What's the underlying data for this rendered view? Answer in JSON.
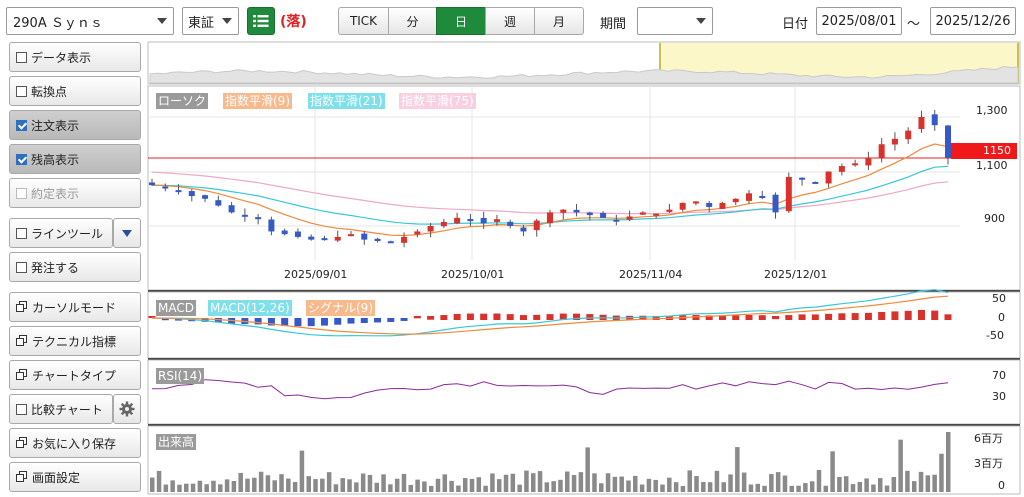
{
  "toolbar": {
    "symbol": "290A Ｓｙｎｓ",
    "exchange": "東証",
    "fall_mark": "(落)",
    "period_buttons": [
      "TICK",
      "分",
      "日",
      "週",
      "月"
    ],
    "active_period": "日",
    "period_label": "期間",
    "period_value": "",
    "date_label": "日付",
    "date_from": "2025/08/01",
    "date_sep": "～",
    "date_to": "2025/12/26"
  },
  "sidebar": {
    "data_display": "データ表示",
    "turning_point": "転換点",
    "order_display": "注文表示",
    "balance_display": "残高表示",
    "execution_display": "約定表示",
    "line_tool": "ラインツール",
    "place_order": "発注する",
    "cursor_mode": "カーソルモード",
    "technical_indicator": "テクニカル指標",
    "chart_type": "チャートタイプ",
    "compare_chart": "比較チャート",
    "save_favorite": "お気に入り保存",
    "screen_settings": "画面設定"
  },
  "legend": {
    "candle": "ローソク",
    "ema9": "指数平滑(9)",
    "ema21": "指数平滑(21)",
    "ema75": "指数平滑(75)",
    "macd": "MACD",
    "macd_params": "MACD(12,26)",
    "signal": "シグナル(9)",
    "rsi": "RSI(14)",
    "volume": "出来高"
  },
  "price_axis": {
    "ticks": [
      "1,300",
      "1,100",
      "900"
    ],
    "current_price": "1150"
  },
  "macd_axis": {
    "ticks": [
      "50",
      "0",
      "-50"
    ]
  },
  "rsi_axis": {
    "ticks": [
      "70",
      "30"
    ]
  },
  "volume_axis": {
    "ticks": [
      "6百万",
      "3百万",
      "0"
    ]
  },
  "date_axis": {
    "labels": [
      "2025/09/01",
      "2025/10/01",
      "2025/11/04",
      "2025/12/01"
    ]
  },
  "colors": {
    "up": "#d9312b",
    "down": "#3559c7",
    "ema9": "#f08a3c",
    "ema21": "#38c8d8",
    "ema75": "#f0a8c8",
    "active": "#1f8a3c",
    "price_line": "#e02020"
  },
  "chart_data": {
    "type": "candlestick",
    "price_range": [
      750,
      1400
    ],
    "current_price": 1150,
    "categories": [
      "2025/08/01",
      "2025/09/01",
      "2025/10/01",
      "2025/11/04",
      "2025/12/01",
      "2025/12/26"
    ],
    "candle_closes_approx": [
      1050,
      1040,
      1030,
      1010,
      1000,
      975,
      950,
      940,
      930,
      880,
      870,
      860,
      850,
      855,
      860,
      870,
      850,
      845,
      840,
      860,
      880,
      900,
      915,
      930,
      920,
      910,
      925,
      900,
      880,
      920,
      950,
      960,
      950,
      940,
      930,
      920,
      935,
      950,
      945,
      960,
      985,
      990,
      970,
      985,
      1000,
      1020,
      1010,
      950,
      1080,
      1070,
      1060,
      1100,
      1120,
      1130,
      1150,
      1200,
      1220,
      1250,
      1300,
      1270,
      1150
    ]
  }
}
